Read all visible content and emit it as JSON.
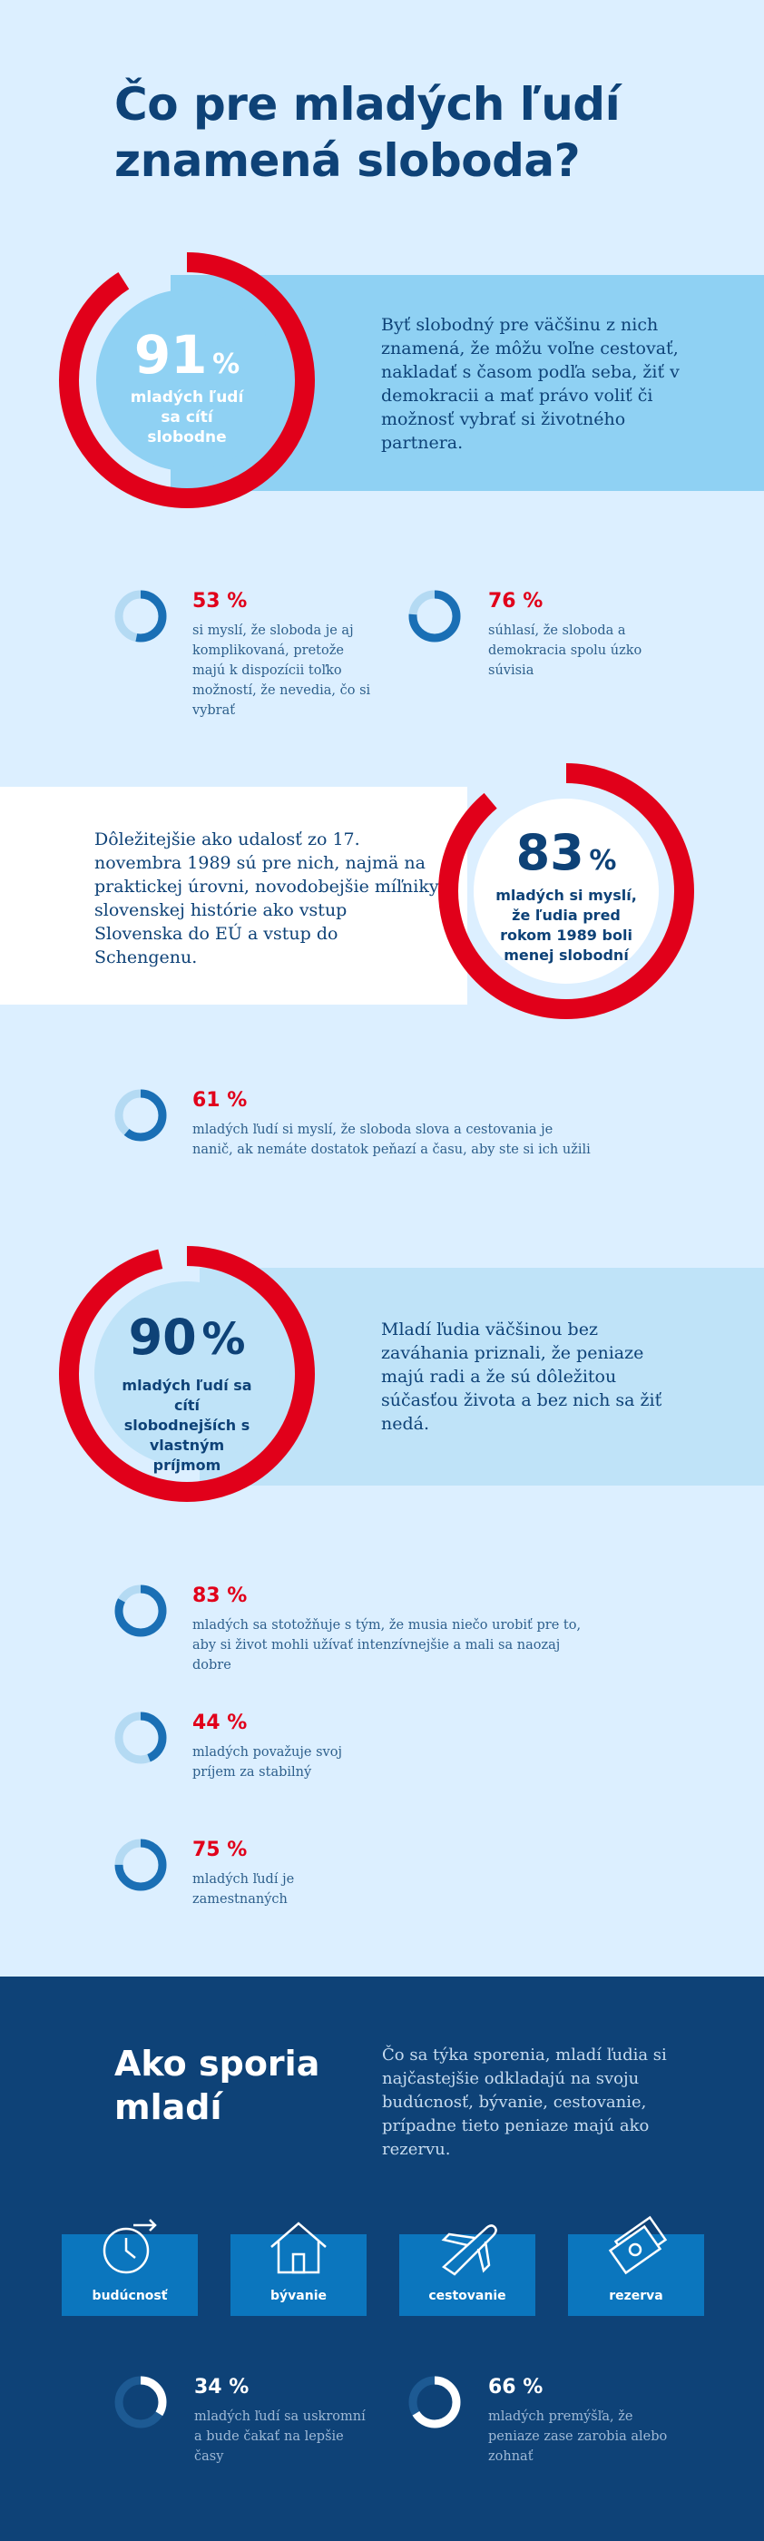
{
  "title": "Čo pre mladých ľudí znamená sloboda?",
  "section1": {
    "big_value": "91",
    "big_unit": "%",
    "big_caption": "mladých ľudí sa cítí slobodne",
    "text": "Byť slobodný pre väčšinu z nich znamená, že môžu voľne cestovať, nakladať s časom podľa seba, žiť v demokracii a mať právo voliť či možnosť vybrať si životného partnera.",
    "stats": [
      {
        "value": "53 %",
        "fraction": 0.53,
        "desc": "si myslí, že sloboda je aj komplikovaná, pretože majú k dispozícii toľko možností, že nevedia, čo si vybrať"
      },
      {
        "value": "76 %",
        "fraction": 0.76,
        "desc": "súhlasí, že sloboda a demokracia spolu úzko súvisia"
      }
    ]
  },
  "section2": {
    "big_value": "83",
    "big_unit": "%",
    "big_caption": "mladých si myslí, že ľudia pred rokom 1989 boli menej slobodní",
    "text": "Dôležitejšie ako udalosť zo 17. novembra 1989 sú pre nich, najmä na praktickej úrovni, novodobejšie míľniky slovenskej histórie ako vstup Slovenska do EÚ a vstup do Schengenu.",
    "stats": [
      {
        "value": "61 %",
        "fraction": 0.61,
        "desc": "mladých ľudí si myslí, že sloboda slova a cestovania je nanič, ak nemáte dostatok peňazí a času, aby ste si ich užili"
      }
    ]
  },
  "section3": {
    "big_value": "90",
    "big_unit": "%",
    "big_caption": "mladých ľudí sa cítí slobodnejších s vlastným príjmom",
    "text": "Mladí ľudia väčšinou bez zaváhania priznali, že peniaze majú radi a že sú dôležitou súčasťou života a bez nich sa žiť nedá.",
    "stats": [
      {
        "value": "83 %",
        "fraction": 0.83,
        "desc": "mladých sa stotožňuje s tým, že musia niečo urobiť pre to, aby si život mohli užívať intenzívnejšie a mali sa naozaj dobre"
      },
      {
        "value": "44 %",
        "fraction": 0.44,
        "desc": "mladých považuje svoj príjem za stabilný"
      },
      {
        "value": "75 %",
        "fraction": 0.75,
        "desc": "mladých ľudí je zamestnaných"
      }
    ]
  },
  "savings": {
    "title": "Ako sporia mladí",
    "text": "Čo sa týka sporenia, mladí ľudia si najčastejšie odkladajú na svoju budúcnosť, bývanie, cestovanie, prípadne tieto peniaze majú ako rezervu.",
    "tiles": [
      {
        "label": "budúcnosť",
        "icon": "clock-icon"
      },
      {
        "label": "bývanie",
        "icon": "house-icon"
      },
      {
        "label": "cestovanie",
        "icon": "airplane-icon"
      },
      {
        "label": "rezerva",
        "icon": "money-icon"
      }
    ],
    "stats": [
      {
        "value": "34 %",
        "fraction": 0.34,
        "desc": "mladých ľudí sa uskromní a bude čakať na lepšie časy"
      },
      {
        "value": "66 %",
        "fraction": 0.66,
        "desc": "mladých premýšľa, že peniaze zase zarobia alebo zohnať"
      }
    ]
  },
  "colors": {
    "navy": "#0e4277",
    "red": "#e1001a",
    "light_blue": "#dcefff",
    "accent_blue": "#0b76be"
  }
}
